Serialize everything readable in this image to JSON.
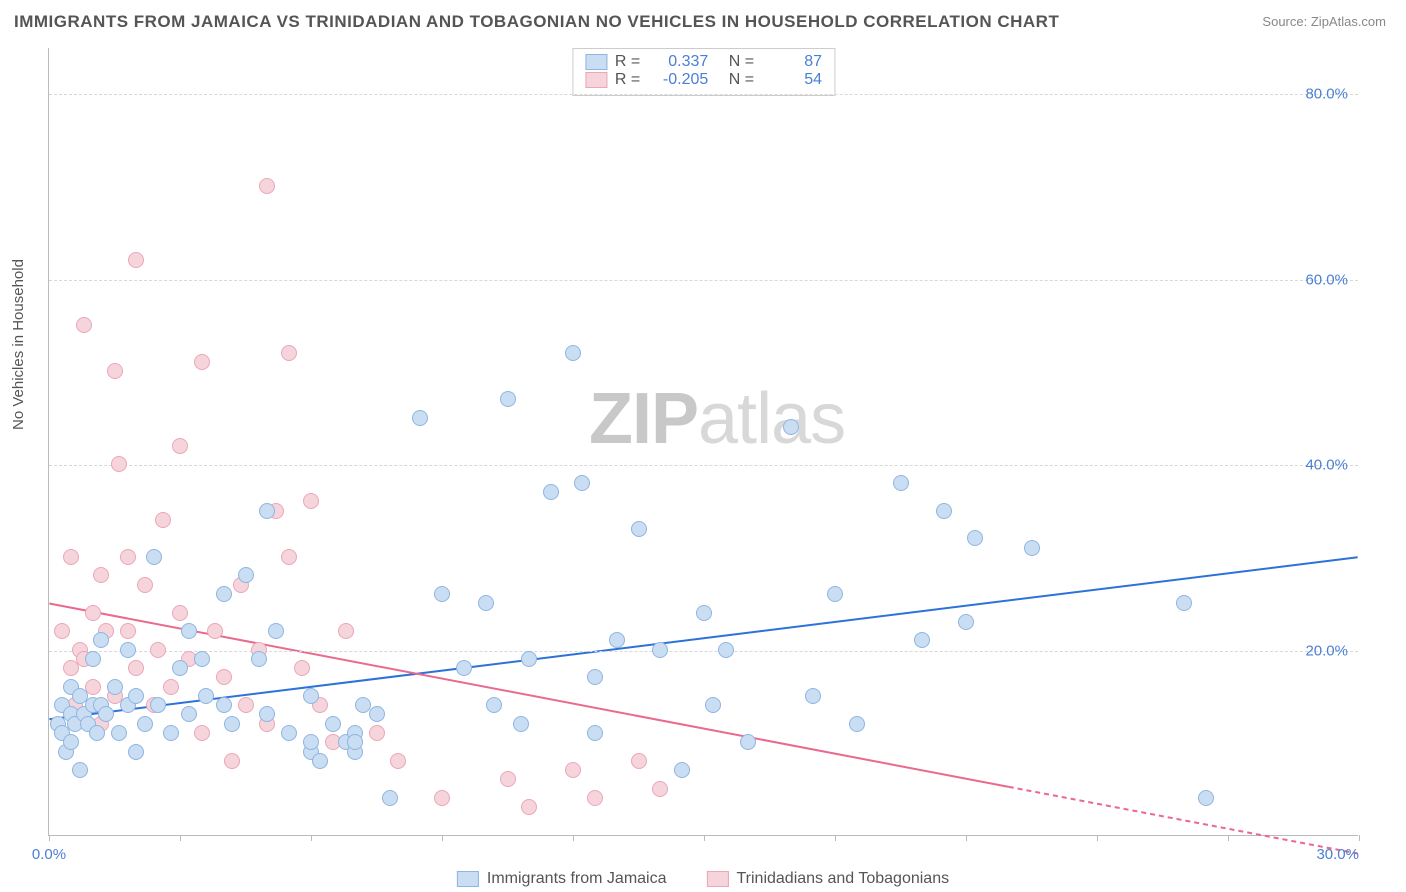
{
  "title": "IMMIGRANTS FROM JAMAICA VS TRINIDADIAN AND TOBAGONIAN NO VEHICLES IN HOUSEHOLD CORRELATION CHART",
  "source_label": "Source:",
  "source_value": "ZipAtlas.com",
  "ylabel": "No Vehicles in Household",
  "watermark_zip": "ZIP",
  "watermark_atlas": "atlas",
  "chart": {
    "type": "scatter",
    "xlim": [
      0,
      30
    ],
    "ylim": [
      0,
      85
    ],
    "x_tick_positions": [
      0,
      3,
      6,
      9,
      12,
      15,
      18,
      21,
      24,
      27,
      30
    ],
    "x_tick_labels_shown": {
      "0": "0.0%",
      "30": "30.0%"
    },
    "y_gridlines": [
      20,
      40,
      60,
      80
    ],
    "y_tick_labels": [
      "20.0%",
      "40.0%",
      "60.0%",
      "80.0%"
    ],
    "background_color": "#ffffff",
    "grid_color": "#d8d8d8",
    "axis_color": "#bbbbbb",
    "tick_label_color": "#4a7fd4",
    "marker_radius": 8,
    "marker_stroke_width": 1.5,
    "series": [
      {
        "name": "Immigrants from Jamaica",
        "fill": "#c9ddf3",
        "stroke": "#8fb5e2",
        "R": "0.337",
        "N": "87",
        "trend": {
          "y_at_x0": 12.5,
          "y_at_x30": 30.0,
          "color": "#2d72d9",
          "width": 2,
          "dash_from_x": null
        },
        "points": [
          [
            0.2,
            12
          ],
          [
            0.3,
            14
          ],
          [
            0.3,
            11
          ],
          [
            0.4,
            9
          ],
          [
            0.5,
            13
          ],
          [
            0.5,
            16
          ],
          [
            0.5,
            10
          ],
          [
            0.6,
            12
          ],
          [
            0.7,
            7
          ],
          [
            0.7,
            15
          ],
          [
            0.8,
            13
          ],
          [
            0.9,
            12
          ],
          [
            1.0,
            14
          ],
          [
            1.0,
            19
          ],
          [
            1.1,
            11
          ],
          [
            1.2,
            14
          ],
          [
            1.2,
            21
          ],
          [
            1.3,
            13
          ],
          [
            1.5,
            16
          ],
          [
            1.6,
            11
          ],
          [
            1.8,
            14
          ],
          [
            1.8,
            20
          ],
          [
            2.0,
            15
          ],
          [
            2.0,
            9
          ],
          [
            2.2,
            12
          ],
          [
            2.4,
            30
          ],
          [
            2.5,
            14
          ],
          [
            2.8,
            11
          ],
          [
            3.0,
            18
          ],
          [
            3.2,
            22
          ],
          [
            3.2,
            13
          ],
          [
            3.5,
            19
          ],
          [
            3.6,
            15
          ],
          [
            4.0,
            14
          ],
          [
            4.0,
            26
          ],
          [
            4.2,
            12
          ],
          [
            4.5,
            28
          ],
          [
            4.8,
            19
          ],
          [
            5.0,
            13
          ],
          [
            5.0,
            35
          ],
          [
            5.2,
            22
          ],
          [
            5.5,
            11
          ],
          [
            6.0,
            15
          ],
          [
            6.0,
            9
          ],
          [
            6.0,
            10
          ],
          [
            6.2,
            8
          ],
          [
            6.5,
            12
          ],
          [
            6.8,
            10
          ],
          [
            7.0,
            11
          ],
          [
            7.0,
            9
          ],
          [
            7.0,
            10
          ],
          [
            7.2,
            14
          ],
          [
            7.5,
            13
          ],
          [
            7.8,
            4
          ],
          [
            8.5,
            45
          ],
          [
            9.0,
            26
          ],
          [
            9.5,
            18
          ],
          [
            10.0,
            25
          ],
          [
            10.2,
            14
          ],
          [
            10.5,
            47
          ],
          [
            10.8,
            12
          ],
          [
            11.0,
            19
          ],
          [
            11.5,
            37
          ],
          [
            12.0,
            52
          ],
          [
            12.2,
            38
          ],
          [
            12.5,
            11
          ],
          [
            12.5,
            17
          ],
          [
            13.0,
            21
          ],
          [
            13.5,
            33
          ],
          [
            14.0,
            20
          ],
          [
            14.5,
            7
          ],
          [
            15.0,
            24
          ],
          [
            15.2,
            14
          ],
          [
            15.5,
            20
          ],
          [
            16.0,
            10
          ],
          [
            17.0,
            44
          ],
          [
            17.5,
            15
          ],
          [
            18.0,
            26
          ],
          [
            18.5,
            12
          ],
          [
            19.5,
            38
          ],
          [
            20.0,
            21
          ],
          [
            20.5,
            35
          ],
          [
            21.0,
            23
          ],
          [
            21.2,
            32
          ],
          [
            22.5,
            31
          ],
          [
            26.0,
            25
          ],
          [
            26.5,
            4
          ]
        ]
      },
      {
        "name": "Trinidadians and Tobagonians",
        "fill": "#f6d4dc",
        "stroke": "#eba6b8",
        "R": "-0.205",
        "N": "54",
        "trend": {
          "y_at_x0": 25.0,
          "y_at_x30": -2.0,
          "color": "#e96a8d",
          "width": 2,
          "dash_from_x": 22
        },
        "points": [
          [
            0.3,
            22
          ],
          [
            0.5,
            18
          ],
          [
            0.5,
            30
          ],
          [
            0.6,
            14
          ],
          [
            0.7,
            20
          ],
          [
            0.8,
            55
          ],
          [
            0.8,
            19
          ],
          [
            1.0,
            24
          ],
          [
            1.0,
            16
          ],
          [
            1.2,
            28
          ],
          [
            1.2,
            12
          ],
          [
            1.3,
            22
          ],
          [
            1.5,
            50
          ],
          [
            1.5,
            15
          ],
          [
            1.6,
            40
          ],
          [
            1.8,
            22
          ],
          [
            1.8,
            30
          ],
          [
            2.0,
            62
          ],
          [
            2.0,
            18
          ],
          [
            2.2,
            27
          ],
          [
            2.4,
            14
          ],
          [
            2.5,
            20
          ],
          [
            2.6,
            34
          ],
          [
            2.8,
            16
          ],
          [
            3.0,
            24
          ],
          [
            3.0,
            42
          ],
          [
            3.2,
            19
          ],
          [
            3.5,
            51
          ],
          [
            3.5,
            11
          ],
          [
            3.8,
            22
          ],
          [
            4.0,
            17
          ],
          [
            4.2,
            8
          ],
          [
            4.4,
            27
          ],
          [
            4.5,
            14
          ],
          [
            4.8,
            20
          ],
          [
            5.0,
            70
          ],
          [
            5.0,
            12
          ],
          [
            5.2,
            35
          ],
          [
            5.5,
            30
          ],
          [
            5.5,
            52
          ],
          [
            5.8,
            18
          ],
          [
            6.0,
            36
          ],
          [
            6.2,
            14
          ],
          [
            6.5,
            10
          ],
          [
            6.8,
            22
          ],
          [
            7.5,
            11
          ],
          [
            8.0,
            8
          ],
          [
            9.0,
            4
          ],
          [
            10.5,
            6
          ],
          [
            11.0,
            3
          ],
          [
            12.0,
            7
          ],
          [
            12.5,
            4
          ],
          [
            13.5,
            8
          ],
          [
            14.0,
            5
          ]
        ]
      }
    ]
  },
  "legend": {
    "series1_label": "Immigrants from Jamaica",
    "series2_label": "Trinidadians and Tobagonians"
  },
  "stats": {
    "r_label": "R =",
    "n_label": "N ="
  }
}
